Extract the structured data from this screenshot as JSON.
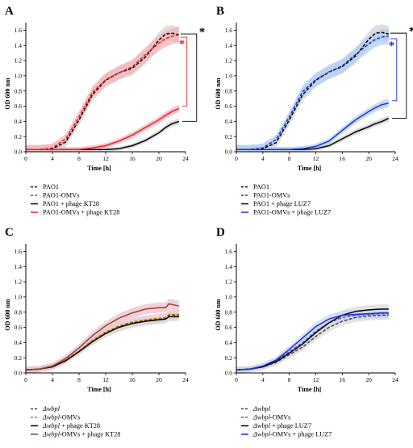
{
  "chart_data": [
    {
      "panel": "A",
      "type": "line",
      "xlabel": "Time [h]",
      "ylabel": "OD 600 nm",
      "xlim": [
        0,
        24
      ],
      "ylim": [
        0,
        1.7
      ],
      "xticks": [
        0,
        4,
        8,
        12,
        16,
        20,
        24
      ],
      "yticks": [
        0.0,
        0.2,
        0.4,
        0.6,
        0.8,
        1.0,
        1.2,
        1.4,
        1.6
      ],
      "grid": false,
      "legend_position": "bottom",
      "x": [
        0,
        2,
        4,
        6,
        8,
        10,
        12,
        14,
        16,
        18,
        20,
        21,
        22,
        23
      ],
      "series": [
        {
          "name": "PAO1",
          "color": "#000000",
          "dash": true,
          "band": true,
          "band_color": "#d4d4d4",
          "values": [
            0.03,
            0.03,
            0.04,
            0.13,
            0.42,
            0.75,
            0.94,
            1.04,
            1.1,
            1.25,
            1.47,
            1.55,
            1.56,
            1.54
          ]
        },
        {
          "name": "PAO1-OMVs",
          "color": "#e8202a",
          "dash": true,
          "band": true,
          "band_color": "#f6b3b8",
          "values": [
            0.03,
            0.03,
            0.05,
            0.17,
            0.46,
            0.78,
            0.95,
            1.04,
            1.12,
            1.28,
            1.43,
            1.49,
            1.52,
            1.54
          ]
        },
        {
          "name": "PAO1 + phage KT28",
          "color": "#000000",
          "dash": false,
          "band": true,
          "band_color": "#cfcfcf",
          "values": [
            0.03,
            0.03,
            0.03,
            0.03,
            0.03,
            0.03,
            0.03,
            0.04,
            0.08,
            0.15,
            0.25,
            0.32,
            0.37,
            0.4
          ]
        },
        {
          "name": "PAO1-OMVs + phage KT28",
          "color": "#e8202a",
          "dash": false,
          "band": true,
          "band_color": "#f6b3b8",
          "values": [
            0.03,
            0.03,
            0.03,
            0.03,
            0.03,
            0.05,
            0.08,
            0.14,
            0.22,
            0.32,
            0.42,
            0.48,
            0.53,
            0.57
          ]
        }
      ],
      "annotations": [
        {
          "text": "*",
          "color": "#000000"
        },
        {
          "text": "*",
          "color": "#e8202a"
        }
      ]
    },
    {
      "panel": "B",
      "type": "line",
      "xlabel": "Time [h]",
      "ylabel": "OD 600 nm",
      "xlim": [
        0,
        24
      ],
      "ylim": [
        0,
        1.7
      ],
      "xticks": [
        0,
        4,
        8,
        12,
        16,
        20,
        24
      ],
      "yticks": [
        0.0,
        0.2,
        0.4,
        0.6,
        0.8,
        1.0,
        1.2,
        1.4,
        1.6
      ],
      "grid": false,
      "legend_position": "bottom",
      "x": [
        0,
        2,
        4,
        6,
        8,
        10,
        12,
        14,
        16,
        18,
        20,
        21,
        22,
        23
      ],
      "series": [
        {
          "name": "PAO1",
          "color": "#000000",
          "dash": true,
          "band": true,
          "band_color": "#d4d4d4",
          "values": [
            0.03,
            0.03,
            0.04,
            0.12,
            0.42,
            0.75,
            0.94,
            1.05,
            1.12,
            1.26,
            1.48,
            1.56,
            1.57,
            1.55
          ]
        },
        {
          "name": "PAO1-OMVs",
          "color": "#1c2fd1",
          "dash": true,
          "band": true,
          "band_color": "#b2cdf0",
          "values": [
            0.03,
            0.03,
            0.05,
            0.16,
            0.46,
            0.79,
            0.95,
            1.05,
            1.13,
            1.28,
            1.42,
            1.48,
            1.51,
            1.52
          ]
        },
        {
          "name": "PAO1 + phage LUZ7",
          "color": "#000000",
          "dash": false,
          "band": true,
          "band_color": "#cfcfcf",
          "values": [
            0.03,
            0.03,
            0.03,
            0.03,
            0.03,
            0.03,
            0.04,
            0.08,
            0.17,
            0.26,
            0.33,
            0.37,
            0.4,
            0.44
          ]
        },
        {
          "name": "PAO1-OMVs + phage LUZ7",
          "color": "#1c2fd1",
          "dash": false,
          "band": true,
          "band_color": "#b2cdf0",
          "values": [
            0.03,
            0.03,
            0.03,
            0.03,
            0.03,
            0.04,
            0.07,
            0.14,
            0.28,
            0.42,
            0.53,
            0.58,
            0.62,
            0.64
          ]
        }
      ],
      "annotations": [
        {
          "text": "*",
          "color": "#000000"
        },
        {
          "text": "*",
          "color": "#1c2fd1"
        }
      ]
    },
    {
      "panel": "C",
      "type": "line",
      "xlabel": "Time [h]",
      "ylabel": "OD 600 nm",
      "xlim": [
        0,
        24
      ],
      "ylim": [
        0,
        1.7
      ],
      "xticks": [
        0,
        4,
        8,
        12,
        16,
        20,
        24
      ],
      "yticks": [
        0.0,
        0.2,
        0.4,
        0.6,
        0.8,
        1.0,
        1.2,
        1.4,
        1.6
      ],
      "grid": false,
      "legend_position": "bottom",
      "x": [
        0,
        2,
        4,
        6,
        8,
        10,
        12,
        14,
        16,
        18,
        20,
        21,
        21.5,
        22,
        23
      ],
      "series": [
        {
          "name": "Δwbpl",
          "italic_prefix": "Δwbpl",
          "suffix": "",
          "color": "#444444",
          "dash": true,
          "band": true,
          "band_color": "#d9d9d9",
          "values": [
            0.04,
            0.05,
            0.09,
            0.17,
            0.29,
            0.42,
            0.53,
            0.61,
            0.66,
            0.69,
            0.71,
            0.72,
            0.76,
            0.76,
            0.76
          ]
        },
        {
          "name": "Δwbpl-OMVs",
          "italic_prefix": "Δwbpl",
          "suffix": "-OMVs",
          "color": "#c8780a",
          "dash": true,
          "band": true,
          "band_color": "#f5c9d6",
          "values": [
            0.04,
            0.05,
            0.09,
            0.17,
            0.29,
            0.43,
            0.54,
            0.62,
            0.67,
            0.7,
            0.72,
            0.73,
            0.77,
            0.77,
            0.77
          ]
        },
        {
          "name": "Δwbpl + phage KT28",
          "italic_prefix": "Δwbpl",
          "suffix": " + phage KT28",
          "color": "#000000",
          "dash": false,
          "band": true,
          "band_color": "#d9d9d9",
          "values": [
            0.04,
            0.05,
            0.08,
            0.16,
            0.28,
            0.41,
            0.52,
            0.6,
            0.65,
            0.68,
            0.7,
            0.71,
            0.74,
            0.74,
            0.74
          ]
        },
        {
          "name": "Δwbpl-OMVs + phage KT28",
          "italic_prefix": "Δwbpl",
          "suffix": "-OMVs + phage KT28",
          "color": "#8b4a1f",
          "dash": false,
          "band": true,
          "band_color": "#f0bfd0",
          "values": [
            0.04,
            0.05,
            0.09,
            0.19,
            0.33,
            0.49,
            0.62,
            0.72,
            0.79,
            0.84,
            0.86,
            0.86,
            0.91,
            0.9,
            0.88
          ]
        }
      ]
    },
    {
      "panel": "D",
      "type": "line",
      "xlabel": "Time [h]",
      "ylabel": "OD 600 nm",
      "xlim": [
        0,
        24
      ],
      "ylim": [
        0,
        1.7
      ],
      "xticks": [
        0,
        4,
        8,
        12,
        16,
        20,
        24
      ],
      "yticks": [
        0.0,
        0.2,
        0.4,
        0.6,
        0.8,
        1.0,
        1.2,
        1.4,
        1.6
      ],
      "grid": false,
      "legend_position": "bottom",
      "x": [
        0,
        2,
        4,
        6,
        8,
        10,
        12,
        14,
        16,
        18,
        20,
        22,
        23
      ],
      "series": [
        {
          "name": "Δwbpl",
          "italic_prefix": "Δwbpl",
          "suffix": "",
          "color": "#444444",
          "dash": true,
          "band": true,
          "band_color": "#d9d9d9",
          "values": [
            0.04,
            0.05,
            0.08,
            0.14,
            0.24,
            0.34,
            0.48,
            0.6,
            0.68,
            0.73,
            0.75,
            0.76,
            0.76
          ]
        },
        {
          "name": "Δwbpl-OMVs",
          "italic_prefix": "Δwbpl",
          "suffix": "-OMVs",
          "color": "#5a55d9",
          "dash": true,
          "band": true,
          "band_color": "#d6d6ee",
          "values": [
            0.04,
            0.05,
            0.09,
            0.16,
            0.28,
            0.4,
            0.55,
            0.66,
            0.73,
            0.76,
            0.77,
            0.78,
            0.78
          ]
        },
        {
          "name": "Δwbpl + phage LUZ7",
          "italic_prefix": "Δwbpl",
          "suffix": " + phage LUZ7",
          "color": "#000000",
          "dash": false,
          "band": true,
          "band_color": "#d9d9d9",
          "values": [
            0.04,
            0.05,
            0.08,
            0.15,
            0.26,
            0.38,
            0.53,
            0.66,
            0.76,
            0.81,
            0.83,
            0.84,
            0.84
          ]
        },
        {
          "name": "Δwbpl-OMVs + phage LUZ7",
          "italic_prefix": "Δwbpl",
          "suffix": "-OMVs + phage LUZ7",
          "color": "#1c2fd1",
          "dash": false,
          "band": true,
          "band_color": "#c9d6f2",
          "values": [
            0.04,
            0.05,
            0.09,
            0.17,
            0.31,
            0.46,
            0.61,
            0.71,
            0.76,
            0.77,
            0.78,
            0.79,
            0.79
          ]
        }
      ]
    }
  ]
}
